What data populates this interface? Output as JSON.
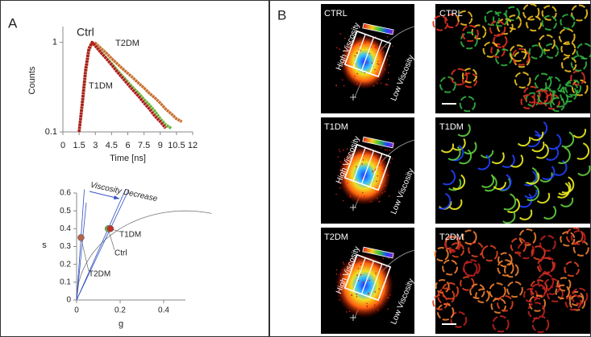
{
  "panel_labels": {
    "a": "A",
    "b": "B"
  },
  "chart_data": [
    {
      "type": "line",
      "ylabel": "Counts",
      "xlabel": "Time [ns]",
      "yscale": "log",
      "xlim": [
        0,
        12
      ],
      "ylim": [
        0.1,
        1.5
      ],
      "xticks": [
        0,
        1.5,
        3,
        4.5,
        6,
        7.5,
        9,
        10.5,
        12
      ],
      "yticks": [
        0.1,
        1
      ],
      "x": [
        1.5,
        1.8,
        2.1,
        2.4,
        2.7,
        3,
        3.5,
        4,
        4.5,
        5,
        5.5,
        6,
        6.5,
        7,
        7.5,
        8,
        8.5,
        9,
        9.5,
        10,
        10.5,
        11
      ],
      "series": [
        {
          "name": "Ctrl",
          "color": "#6aaf2e",
          "values": [
            0.1,
            0.22,
            0.5,
            0.85,
            1,
            0.91,
            0.78,
            0.67,
            0.58,
            0.49,
            0.42,
            0.36,
            0.31,
            0.27,
            0.23,
            0.2,
            0.17,
            0.14,
            0.12,
            0.11,
            null,
            null
          ]
        },
        {
          "name": "T1DM",
          "color": "#b0191e",
          "values": [
            0.1,
            0.22,
            0.5,
            0.85,
            1,
            0.91,
            0.77,
            0.66,
            0.56,
            0.47,
            0.4,
            0.34,
            0.29,
            0.25,
            0.21,
            0.18,
            0.15,
            0.13,
            0.11,
            null,
            null,
            null
          ]
        },
        {
          "name": "T2DM",
          "color": "#c8702f",
          "values": [
            0.1,
            0.2,
            0.45,
            0.8,
            0.98,
            0.98,
            0.86,
            0.76,
            0.66,
            0.58,
            0.51,
            0.45,
            0.4,
            0.35,
            0.31,
            0.27,
            0.24,
            0.21,
            0.18,
            0.16,
            0.14,
            0.13
          ]
        }
      ]
    },
    {
      "type": "scatter",
      "ylabel": "s",
      "xlabel": "g",
      "annotation": "Viscosity Decrease",
      "xlim": [
        0,
        0.5
      ],
      "ylim": [
        0,
        0.6
      ],
      "xticks": [
        0,
        0.2,
        0.4
      ],
      "yticks": [
        0,
        0.1,
        0.2,
        0.3,
        0.4,
        0.5,
        0.6
      ],
      "series": [
        {
          "name": "T2DM",
          "color": "#b5634a",
          "x": [
            0.02
          ],
          "values": [
            0.35
          ]
        },
        {
          "name": "Ctrl",
          "color": "#74b04a",
          "x": [
            0.145
          ],
          "values": [
            0.4
          ]
        },
        {
          "name": "T1DM",
          "color": "#c0302a",
          "x": [
            0.155
          ],
          "values": [
            0.4
          ]
        }
      ]
    }
  ],
  "panel_b": {
    "high": "High Viscosity",
    "low": "Low Viscosity",
    "rows": [
      {
        "phasor_label": "CTRL",
        "image_label": "CTRL"
      },
      {
        "phasor_label": "T1DM",
        "image_label": "T1DM"
      },
      {
        "phasor_label": "T2DM",
        "image_label": "T2DM"
      }
    ]
  }
}
